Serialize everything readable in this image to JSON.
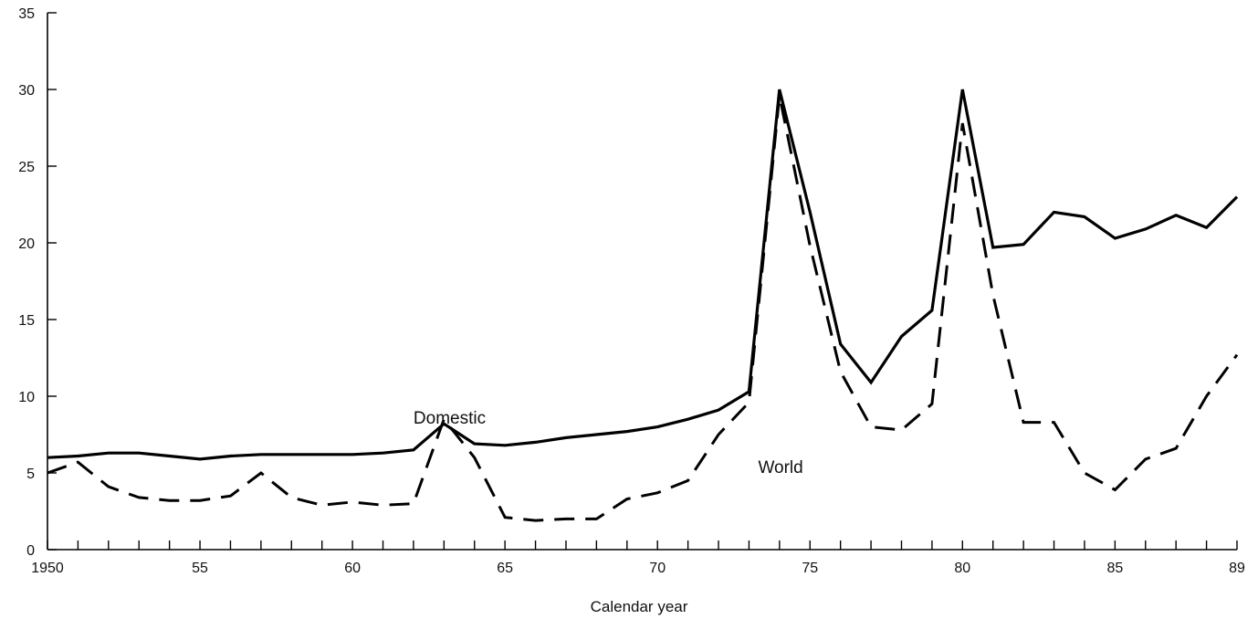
{
  "chart_data": {
    "type": "line",
    "title": "",
    "xlabel": "Calendar year",
    "ylabel": "",
    "xlim": [
      1950,
      1989
    ],
    "ylim": [
      0,
      35
    ],
    "grid": false,
    "legend": "inline labels",
    "x_tick_labels": [
      {
        "x": 1950,
        "label": "1950"
      },
      {
        "x": 1955,
        "label": "55"
      },
      {
        "x": 1960,
        "label": "60"
      },
      {
        "x": 1965,
        "label": "65"
      },
      {
        "x": 1970,
        "label": "70"
      },
      {
        "x": 1975,
        "label": "75"
      },
      {
        "x": 1980,
        "label": "80"
      },
      {
        "x": 1985,
        "label": "85"
      },
      {
        "x": 1989,
        "label": "89"
      }
    ],
    "y_ticks": [
      0,
      5,
      10,
      15,
      20,
      25,
      30,
      35
    ],
    "x": [
      1950,
      1951,
      1952,
      1953,
      1954,
      1955,
      1956,
      1957,
      1958,
      1959,
      1960,
      1961,
      1962,
      1963,
      1964,
      1965,
      1966,
      1967,
      1968,
      1969,
      1970,
      1971,
      1972,
      1973,
      1974,
      1975,
      1976,
      1977,
      1978,
      1979,
      1980,
      1981,
      1982,
      1983,
      1984,
      1985,
      1986,
      1987,
      1988,
      1989
    ],
    "series": [
      {
        "name": "Domestic",
        "style": "solid",
        "color": "#000000",
        "label_at": [
          1962.0,
          8.2
        ],
        "values": [
          6.0,
          6.1,
          6.3,
          6.3,
          6.1,
          5.9,
          6.1,
          6.2,
          6.2,
          6.2,
          6.2,
          6.3,
          6.5,
          8.2,
          6.9,
          6.8,
          7.0,
          7.3,
          7.5,
          7.7,
          8.0,
          8.5,
          9.1,
          10.3,
          30.0,
          22.0,
          13.4,
          10.9,
          13.9,
          15.6,
          30.0,
          19.7,
          19.9,
          22.0,
          21.7,
          20.3,
          20.9,
          21.8,
          21.0,
          23.0
        ]
      },
      {
        "name": "World",
        "style": "dashed",
        "color": "#000000",
        "label_at": [
          1973.3,
          5.0
        ],
        "values": [
          5.0,
          5.7,
          4.1,
          3.4,
          3.2,
          3.2,
          3.5,
          5.0,
          3.4,
          2.9,
          3.1,
          2.9,
          3.0,
          8.5,
          6.0,
          2.1,
          1.9,
          2.0,
          2.0,
          3.3,
          3.7,
          4.5,
          7.5,
          9.6,
          29.6,
          19.8,
          11.6,
          8.0,
          7.8,
          9.5,
          27.8,
          16.6,
          8.3,
          8.3,
          5.0,
          3.9,
          5.9,
          6.6,
          10.0,
          12.7
        ]
      }
    ]
  }
}
